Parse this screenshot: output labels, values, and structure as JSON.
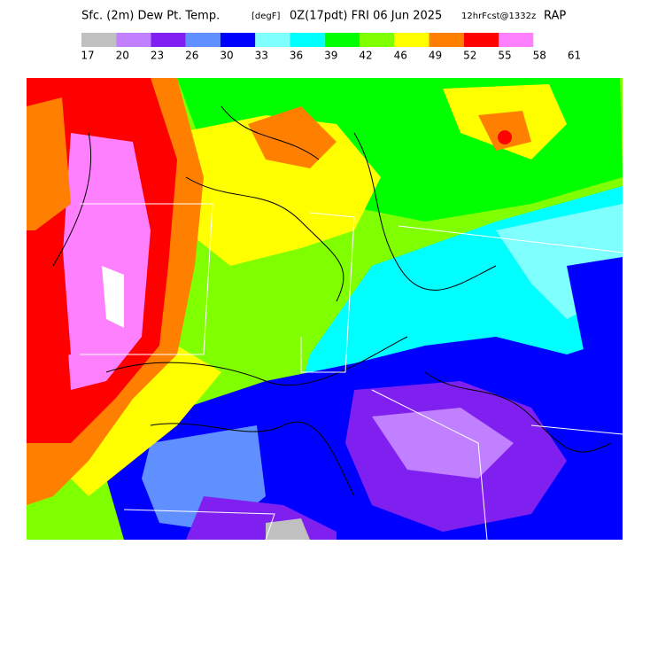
{
  "header": {
    "title": "Sfc. (2m) Dew Pt. Temp.",
    "units": "[degF]",
    "valid": "0Z(17pdt) FRI 06 Jun 2025",
    "forecast": "12hrFcst@1332z",
    "model": "RAP"
  },
  "legend": {
    "colors": [
      "#c0c0c0",
      "#c080ff",
      "#8020f0",
      "#6090ff",
      "#0000ff",
      "#80ffff",
      "#00ffff",
      "#00ff00",
      "#80ff00",
      "#ffff00",
      "#ff8000",
      "#ff0000",
      "#ff80ff"
    ],
    "labels": [
      17,
      20,
      23,
      26,
      30,
      33,
      36,
      39,
      42,
      46,
      49,
      52,
      55,
      58,
      61
    ]
  }
}
